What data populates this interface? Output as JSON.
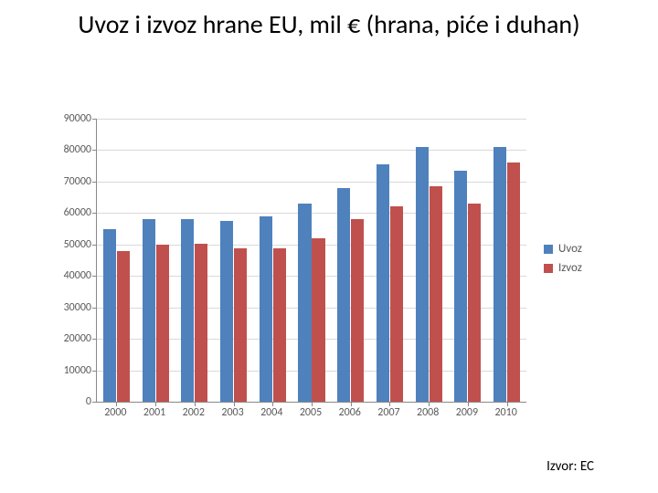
{
  "title": "Uvoz i izvoz hrane EU, mil € (hrana, piće i duhan)",
  "source": "Izvor: EC",
  "chart": {
    "type": "bar",
    "categories": [
      "2000",
      "2001",
      "2002",
      "2003",
      "2004",
      "2005",
      "2006",
      "2007",
      "2008",
      "2009",
      "2010"
    ],
    "series": [
      {
        "name": "Uvoz",
        "color": "#4f81bd",
        "values": [
          55000,
          58000,
          58200,
          57500,
          59000,
          63000,
          68000,
          75500,
          81000,
          73500,
          81000
        ]
      },
      {
        "name": "Izvoz",
        "color": "#c0504d",
        "values": [
          47800,
          49800,
          50200,
          48800,
          48900,
          52000,
          58000,
          62000,
          68500,
          63000,
          76000
        ]
      }
    ],
    "ylim": [
      0,
      90000
    ],
    "ytick_step": 10000,
    "background_color": "#ffffff",
    "grid_color": "#d9d9d9",
    "axis_color": "#888888",
    "label_color": "#595959",
    "label_fontsize": 12,
    "bar_group_width": 0.68,
    "bar_gap": 0.02,
    "title_fontsize": 28,
    "title_color": "#000000"
  }
}
